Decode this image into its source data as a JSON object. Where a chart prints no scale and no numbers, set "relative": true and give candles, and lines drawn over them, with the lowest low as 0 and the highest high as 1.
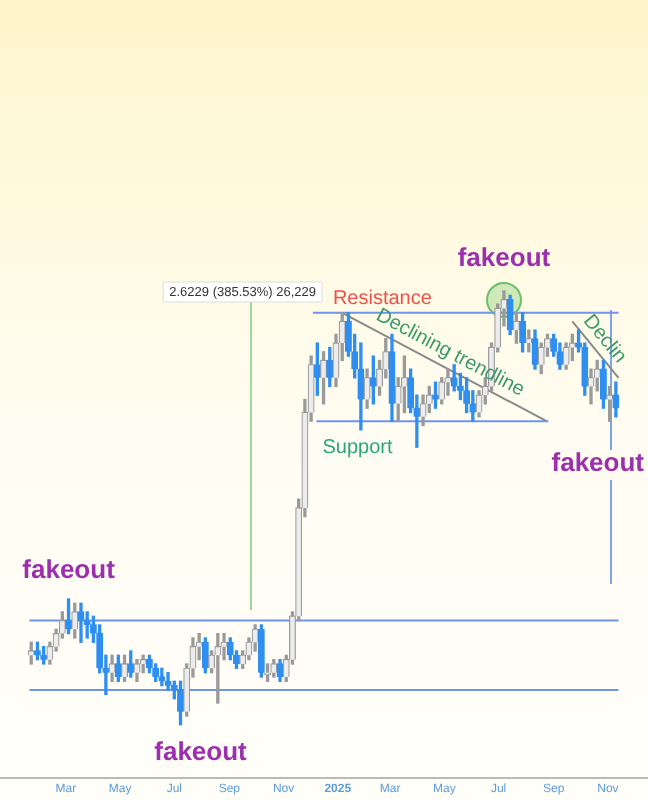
{
  "chart_data": {
    "type": "candlestick",
    "relative": true,
    "x": [
      "2024-01-22",
      "2024-01-29",
      "2024-02-05",
      "2024-02-12",
      "2024-02-19",
      "2024-02-26",
      "2024-03-04",
      "2024-03-11",
      "2024-03-18",
      "2024-03-25",
      "2024-04-01",
      "2024-04-08",
      "2024-04-15",
      "2024-04-22",
      "2024-04-29",
      "2024-05-06",
      "2024-05-13",
      "2024-05-20",
      "2024-05-27",
      "2024-06-03",
      "2024-06-10",
      "2024-06-17",
      "2024-06-24",
      "2024-07-01",
      "2024-07-08",
      "2024-07-15",
      "2024-07-22",
      "2024-07-29",
      "2024-08-05",
      "2024-08-12",
      "2024-08-19",
      "2024-08-26",
      "2024-09-02",
      "2024-09-09",
      "2024-09-16",
      "2024-09-23",
      "2024-09-30",
      "2024-10-07",
      "2024-10-14",
      "2024-10-21",
      "2024-10-28",
      "2024-11-04",
      "2024-11-11",
      "2024-11-18",
      "2024-11-25",
      "2024-12-02",
      "2024-12-09",
      "2024-12-16",
      "2024-12-23",
      "2024-12-30",
      "2025-01-06",
      "2025-01-13",
      "2025-01-20",
      "2025-01-27",
      "2025-02-03",
      "2025-02-10",
      "2025-02-17",
      "2025-02-24",
      "2025-03-03",
      "2025-03-10",
      "2025-03-17",
      "2025-03-24",
      "2025-03-31",
      "2025-04-07",
      "2025-04-14",
      "2025-04-21",
      "2025-04-28",
      "2025-05-05",
      "2025-05-12",
      "2025-05-19",
      "2025-05-26",
      "2025-06-02",
      "2025-06-09",
      "2025-06-16",
      "2025-06-23",
      "2025-06-30",
      "2025-07-07",
      "2025-07-14",
      "2025-07-21",
      "2025-07-28",
      "2025-08-04",
      "2025-08-11",
      "2025-08-18",
      "2025-08-25",
      "2025-09-01",
      "2025-09-08",
      "2025-09-15",
      "2025-09-22",
      "2025-09-29",
      "2025-10-06",
      "2025-10-13",
      "2025-10-20",
      "2025-10-27",
      "2025-11-03",
      "2025-11-10"
    ],
    "ohlc": [
      [
        0.16,
        0.19,
        0.14,
        0.17
      ],
      [
        0.17,
        0.19,
        0.15,
        0.16
      ],
      [
        0.16,
        0.18,
        0.14,
        0.15
      ],
      [
        0.15,
        0.19,
        0.14,
        0.18
      ],
      [
        0.18,
        0.22,
        0.17,
        0.21
      ],
      [
        0.21,
        0.26,
        0.2,
        0.24
      ],
      [
        0.24,
        0.29,
        0.21,
        0.22
      ],
      [
        0.22,
        0.28,
        0.2,
        0.26
      ],
      [
        0.26,
        0.28,
        0.19,
        0.24
      ],
      [
        0.24,
        0.26,
        0.2,
        0.23
      ],
      [
        0.23,
        0.25,
        0.19,
        0.21
      ],
      [
        0.21,
        0.23,
        0.12,
        0.13
      ],
      [
        0.13,
        0.16,
        0.07,
        0.12
      ],
      [
        0.12,
        0.16,
        0.1,
        0.14
      ],
      [
        0.14,
        0.16,
        0.1,
        0.11
      ],
      [
        0.11,
        0.16,
        0.1,
        0.14
      ],
      [
        0.14,
        0.17,
        0.11,
        0.12
      ],
      [
        0.12,
        0.15,
        0.1,
        0.14
      ],
      [
        0.14,
        0.16,
        0.12,
        0.15
      ],
      [
        0.15,
        0.16,
        0.12,
        0.13
      ],
      [
        0.13,
        0.14,
        0.1,
        0.11
      ],
      [
        0.11,
        0.13,
        0.09,
        0.1
      ],
      [
        0.1,
        0.12,
        0.08,
        0.09
      ],
      [
        0.09,
        0.1,
        0.06,
        0.08
      ],
      [
        0.08,
        0.1,
        0.0,
        0.03
      ],
      [
        0.03,
        0.14,
        0.02,
        0.13
      ],
      [
        0.13,
        0.2,
        0.11,
        0.18
      ],
      [
        0.18,
        0.21,
        0.15,
        0.19
      ],
      [
        0.19,
        0.2,
        0.12,
        0.13
      ],
      [
        0.13,
        0.17,
        0.12,
        0.16
      ],
      [
        0.16,
        0.21,
        0.05,
        0.18
      ],
      [
        0.18,
        0.21,
        0.15,
        0.19
      ],
      [
        0.19,
        0.2,
        0.15,
        0.16
      ],
      [
        0.16,
        0.17,
        0.13,
        0.14
      ],
      [
        0.14,
        0.17,
        0.13,
        0.16
      ],
      [
        0.16,
        0.2,
        0.15,
        0.19
      ],
      [
        0.19,
        0.23,
        0.17,
        0.22
      ],
      [
        0.22,
        0.23,
        0.11,
        0.12
      ],
      [
        0.12,
        0.14,
        0.1,
        0.12
      ],
      [
        0.12,
        0.15,
        0.11,
        0.14
      ],
      [
        0.14,
        0.15,
        0.1,
        0.11
      ],
      [
        0.11,
        0.16,
        0.1,
        0.15
      ],
      [
        0.15,
        0.26,
        0.14,
        0.25
      ],
      [
        0.25,
        0.52,
        0.24,
        0.5
      ],
      [
        0.5,
        0.75,
        0.48,
        0.72
      ],
      [
        0.72,
        0.85,
        0.7,
        0.83
      ],
      [
        0.83,
        0.88,
        0.76,
        0.8
      ],
      [
        0.8,
        0.86,
        0.74,
        0.84
      ],
      [
        0.84,
        0.87,
        0.78,
        0.8
      ],
      [
        0.8,
        0.9,
        0.78,
        0.88
      ],
      [
        0.88,
        0.95,
        0.84,
        0.93
      ],
      [
        0.93,
        0.95,
        0.85,
        0.86
      ],
      [
        0.86,
        0.9,
        0.8,
        0.82
      ],
      [
        0.82,
        0.88,
        0.68,
        0.75
      ],
      [
        0.75,
        0.82,
        0.73,
        0.8
      ],
      [
        0.8,
        0.85,
        0.74,
        0.78
      ],
      [
        0.78,
        0.84,
        0.76,
        0.82
      ],
      [
        0.82,
        0.89,
        0.8,
        0.86
      ],
      [
        0.86,
        0.9,
        0.7,
        0.74
      ],
      [
        0.74,
        0.8,
        0.7,
        0.78
      ],
      [
        0.78,
        0.85,
        0.72,
        0.8
      ],
      [
        0.8,
        0.82,
        0.72,
        0.73
      ],
      [
        0.73,
        0.76,
        0.64,
        0.71
      ],
      [
        0.71,
        0.76,
        0.69,
        0.74
      ],
      [
        0.74,
        0.78,
        0.72,
        0.76
      ],
      [
        0.76,
        0.79,
        0.73,
        0.75
      ],
      [
        0.75,
        0.8,
        0.74,
        0.79
      ],
      [
        0.79,
        0.82,
        0.76,
        0.8
      ],
      [
        0.8,
        0.83,
        0.77,
        0.78
      ],
      [
        0.78,
        0.81,
        0.75,
        0.77
      ],
      [
        0.77,
        0.8,
        0.72,
        0.74
      ],
      [
        0.74,
        0.77,
        0.7,
        0.72
      ],
      [
        0.72,
        0.77,
        0.71,
        0.76
      ],
      [
        0.76,
        0.8,
        0.74,
        0.78
      ],
      [
        0.78,
        0.88,
        0.77,
        0.87
      ],
      [
        0.87,
        0.97,
        0.86,
        0.96
      ],
      [
        0.96,
        1.0,
        0.92,
        0.98
      ],
      [
        0.98,
        0.99,
        0.9,
        0.91
      ],
      [
        0.91,
        0.95,
        0.88,
        0.93
      ],
      [
        0.93,
        0.95,
        0.86,
        0.88
      ],
      [
        0.88,
        0.91,
        0.86,
        0.89
      ],
      [
        0.89,
        0.91,
        0.82,
        0.83
      ],
      [
        0.83,
        0.88,
        0.81,
        0.87
      ],
      [
        0.87,
        0.9,
        0.85,
        0.89
      ],
      [
        0.89,
        0.9,
        0.85,
        0.86
      ],
      [
        0.86,
        0.88,
        0.82,
        0.83
      ],
      [
        0.83,
        0.88,
        0.82,
        0.87
      ],
      [
        0.87,
        0.9,
        0.84,
        0.88
      ],
      [
        0.88,
        0.91,
        0.86,
        0.87
      ],
      [
        0.87,
        0.88,
        0.76,
        0.78
      ],
      [
        0.78,
        0.82,
        0.74,
        0.8
      ],
      [
        0.8,
        0.84,
        0.77,
        0.82
      ],
      [
        0.82,
        0.84,
        0.73,
        0.75
      ],
      [
        0.75,
        0.78,
        0.7,
        0.76
      ],
      [
        0.76,
        0.79,
        0.71,
        0.73
      ]
    ],
    "series": [
      {
        "type": "line",
        "name": "Resistance",
        "color": "#6f95e6",
        "x": [
          "2024-12-04",
          "2025-11-13"
        ],
        "values": [
          0.95,
          0.95
        ]
      },
      {
        "type": "line",
        "name": "Support",
        "color": "#6f95e6",
        "x": [
          "2024-12-08",
          "2025-08-26"
        ],
        "values": [
          0.7,
          0.7
        ]
      },
      {
        "type": "line",
        "color": "#6f95e6",
        "x": [
          "2024-01-20",
          "2025-11-13"
        ],
        "values": [
          0.24,
          0.24
        ]
      },
      {
        "type": "line",
        "color": "#6f95e6",
        "x": [
          "2024-01-20",
          "2025-11-13"
        ],
        "values": [
          0.08,
          0.08
        ]
      },
      {
        "type": "line",
        "name": "Declining trendline",
        "color": "#8a8a8a",
        "x": [
          "2025-01-06",
          "2025-08-24"
        ],
        "values": [
          0.95,
          0.7
        ]
      },
      {
        "type": "line",
        "name": "Declin",
        "color": "#8a8a8a",
        "x": [
          "2025-09-22",
          "2025-11-13"
        ],
        "values": [
          0.93,
          0.8
        ]
      }
    ],
    "annotations": [
      {
        "text": "fakeout",
        "x": "2024-03-04",
        "y": 0.29
      },
      {
        "text": "fakeout",
        "x": "2024-07-08",
        "y": 0.0
      },
      {
        "text": "fakeout",
        "x": "2025-07-07",
        "y": 1.0
      },
      "fakeout",
      "2.6229 (385.53%) 26,229"
    ],
    "xlim": [
      "2024-01-20",
      "2025-11-13"
    ],
    "xticks": [
      {
        "value": "2024-03-01",
        "label": "Mar"
      },
      {
        "value": "2024-05-01",
        "label": "May"
      },
      {
        "value": "2024-07-01",
        "label": "Jul"
      },
      {
        "value": "2024-09-01",
        "label": "Sep"
      },
      {
        "value": "2024-11-01",
        "label": "Nov"
      },
      {
        "value": "2025-01-01",
        "label": "2025"
      },
      {
        "value": "2025-03-01",
        "label": "Mar"
      },
      {
        "value": "2025-05-01",
        "label": "May"
      },
      {
        "value": "2025-07-01",
        "label": "Jul"
      },
      {
        "value": "2025-09-01",
        "label": "Sep"
      },
      {
        "value": "2025-11-01",
        "label": "Nov"
      }
    ],
    "grid": false,
    "legend": false
  }
}
